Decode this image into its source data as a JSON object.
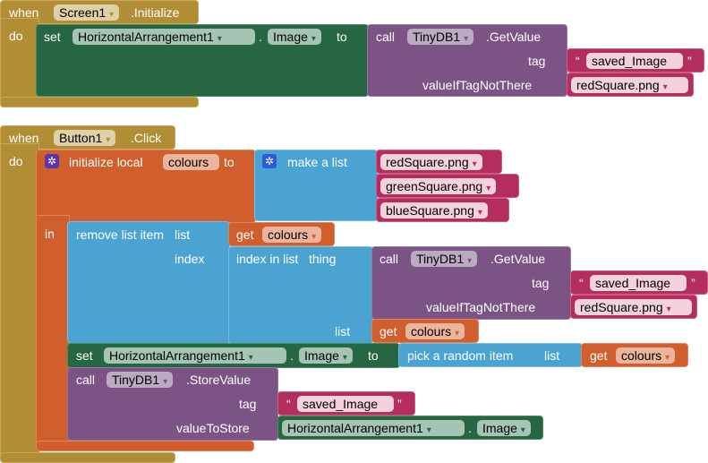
{
  "block1": {
    "when": "when",
    "component": "Screen1",
    "event": ".Initialize",
    "do": "do",
    "set": "set",
    "target": "HorizontalArrangement1",
    "dot": ".",
    "property": "Image",
    "to": "to",
    "call": "call",
    "db": "TinyDB1",
    "method": ".GetValue",
    "tag_label": "tag",
    "tag_value": "saved_Image",
    "q1": "“",
    "q2": "”",
    "default_label": "valueIfTagNotThere",
    "default_value": "redSquare.png"
  },
  "block2": {
    "when": "when",
    "component": "Button1",
    "event": ".Click",
    "do": "do",
    "init": "initialize local",
    "var": "colours",
    "to": "to",
    "make_list": "make a list",
    "items": [
      "redSquare.png",
      "greenSquare.png",
      "blueSquare.png"
    ],
    "in": "in",
    "remove": "remove list item",
    "list": "list",
    "get": "get",
    "index": "index",
    "index_in_list": "index in list",
    "thing": "thing",
    "call": "call",
    "db": "TinyDB1",
    "get_method": ".GetValue",
    "tag_label": "tag",
    "tag_value": "saved_Image",
    "default_label": "valueIfTagNotThere",
    "default_value": "redSquare.png",
    "set": "set",
    "target": "HorizontalArrangement1",
    "dot": ".",
    "property": "Image",
    "pick": "pick a random item",
    "store_method": ".StoreValue",
    "value_label": "valueToStore",
    "q1": "“",
    "q2": "”"
  },
  "dropdown": "▾",
  "colors": {
    "event": "#b18e35",
    "component": "#266643",
    "procedure": "#7c5385",
    "variable": "#d05f2d",
    "list": "#4aa3d1",
    "text": "#b32d5e"
  }
}
